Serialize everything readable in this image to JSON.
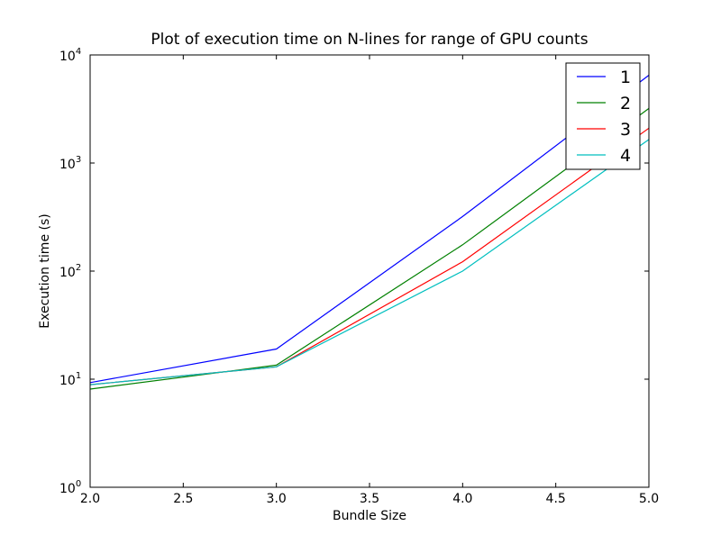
{
  "chart_data": {
    "type": "line",
    "title": "Plot of execution time on N-lines for range of GPU counts",
    "xlabel": "Bundle Size",
    "ylabel": "Execution time (s)",
    "xlim": [
      2.0,
      5.0
    ],
    "ylim": [
      1,
      10000
    ],
    "yscale": "log",
    "x_ticks": [
      "2.0",
      "2.5",
      "3.0",
      "3.5",
      "4.0",
      "4.5",
      "5.0"
    ],
    "y_ticks": [
      {
        "base": "10",
        "exp": "0"
      },
      {
        "base": "10",
        "exp": "1"
      },
      {
        "base": "10",
        "exp": "2"
      },
      {
        "base": "10",
        "exp": "3"
      },
      {
        "base": "10",
        "exp": "4"
      }
    ],
    "grid": false,
    "legend_position": "top-right",
    "x": [
      2,
      3,
      4,
      5
    ],
    "series": [
      {
        "name": "1",
        "color": "#0000ff",
        "values": [
          9.3,
          19,
          320,
          6500
        ]
      },
      {
        "name": "2",
        "color": "#008000",
        "values": [
          8.1,
          13.5,
          175,
          3200
        ]
      },
      {
        "name": "3",
        "color": "#ff0000",
        "values": [
          8.9,
          13,
          122,
          2100
        ]
      },
      {
        "name": "4",
        "color": "#00bfbf",
        "values": [
          8.9,
          13,
          100,
          1650
        ]
      }
    ]
  }
}
